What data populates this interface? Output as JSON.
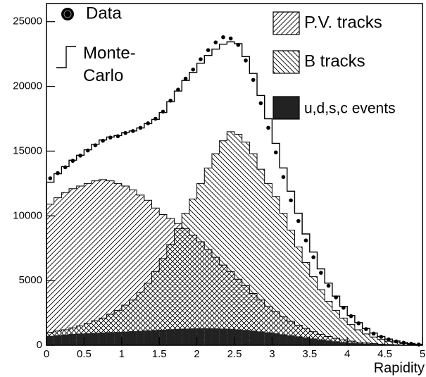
{
  "chart_data": {
    "type": "histogram",
    "xlabel": "Rapidity",
    "bins": [
      0,
      0.1,
      0.2,
      0.3,
      0.4,
      0.5,
      0.6,
      0.7,
      0.8,
      0.9,
      1,
      1.1,
      1.2,
      1.3,
      1.4,
      1.5,
      1.6,
      1.7,
      1.8,
      1.9,
      2,
      2.1,
      2.2,
      2.3,
      2.4,
      2.5,
      2.6,
      2.7,
      2.8,
      2.9,
      3,
      3.1,
      3.2,
      3.3,
      3.4,
      3.5,
      3.6,
      3.7,
      3.8,
      3.9,
      4,
      4.1,
      4.2,
      4.3,
      4.4,
      4.5,
      4.6,
      4.7,
      4.8,
      4.9,
      5
    ],
    "xlim": [
      0,
      5
    ],
    "ylim": [
      0,
      26400
    ],
    "xticks": [
      0,
      0.5,
      1,
      1.5,
      2,
      2.5,
      3,
      3.5,
      4,
      4.5,
      5
    ],
    "yticks": [
      0,
      5000,
      10000,
      15000,
      20000,
      25000
    ],
    "series": [
      {
        "name": "P.V. tracks",
        "color": "#000000",
        "style": "hatch",
        "hatch": "/",
        "values": [
          10900,
          11400,
          11800,
          12100,
          12300,
          12500,
          12700,
          12800,
          12700,
          12500,
          12300,
          12000,
          11600,
          11200,
          10600,
          10100,
          9800,
          9400,
          9000,
          8500,
          8000,
          7400,
          6800,
          6200,
          5700,
          5100,
          4600,
          4000,
          3500,
          3000,
          2600,
          2200,
          1850,
          1550,
          1300,
          1050,
          850,
          680,
          540,
          420,
          320,
          240,
          180,
          130,
          90,
          60,
          40,
          25,
          15,
          8
        ]
      },
      {
        "name": "B tracks",
        "color": "#000000",
        "style": "hatch",
        "hatch": "\\",
        "values": [
          1000,
          1100,
          1200,
          1350,
          1500,
          1700,
          1900,
          2100,
          2400,
          2700,
          3100,
          3500,
          4100,
          4800,
          5700,
          6700,
          7800,
          9000,
          10200,
          11300,
          12500,
          13700,
          14800,
          15800,
          16500,
          16300,
          15700,
          14800,
          13600,
          12500,
          11500,
          10200,
          8900,
          7600,
          6400,
          5300,
          4300,
          3400,
          2700,
          2100,
          1600,
          1200,
          880,
          640,
          450,
          310,
          210,
          130,
          80,
          40
        ]
      },
      {
        "name": "u,d,s,c events",
        "color": "#222222",
        "style": "filled",
        "values": [
          700,
          750,
          800,
          850,
          880,
          900,
          930,
          960,
          990,
          1000,
          1030,
          1060,
          1090,
          1120,
          1150,
          1180,
          1210,
          1240,
          1260,
          1280,
          1290,
          1290,
          1280,
          1260,
          1240,
          1200,
          1160,
          1100,
          1040,
          970,
          900,
          820,
          740,
          660,
          580,
          500,
          420,
          350,
          280,
          220,
          170,
          130,
          95,
          70,
          50,
          35,
          25,
          15,
          10,
          5
        ]
      },
      {
        "name": "Monte-Carlo",
        "color": "#000000",
        "style": "step",
        "values": [
          12600,
          13250,
          13800,
          14300,
          14680,
          15100,
          15530,
          15860,
          16090,
          16200,
          16430,
          16560,
          16790,
          17120,
          17450,
          17980,
          18810,
          19640,
          20460,
          21080,
          21790,
          22390,
          22880,
          23260,
          23440,
          23300,
          22300,
          21000,
          19300,
          17500,
          15600,
          13700,
          11900,
          10200,
          8600,
          7200,
          5900,
          4800,
          3800,
          3000,
          2300,
          1750,
          1300,
          950,
          680,
          480,
          330,
          220,
          140,
          80
        ]
      },
      {
        "name": "Data",
        "color": "#000000",
        "style": "points",
        "values": [
          12900,
          13300,
          13750,
          14250,
          14650,
          15050,
          15450,
          15800,
          16050,
          16150,
          16400,
          16550,
          16800,
          17150,
          17500,
          18050,
          18900,
          19750,
          20600,
          21300,
          22100,
          22800,
          23400,
          23800,
          23700,
          23200,
          22000,
          20500,
          18700,
          16800,
          14900,
          13000,
          11200,
          9600,
          8100,
          6800,
          5600,
          4600,
          3700,
          2900,
          2250,
          1700,
          1250,
          900,
          650,
          450,
          300,
          200,
          120,
          60
        ]
      }
    ]
  }
}
